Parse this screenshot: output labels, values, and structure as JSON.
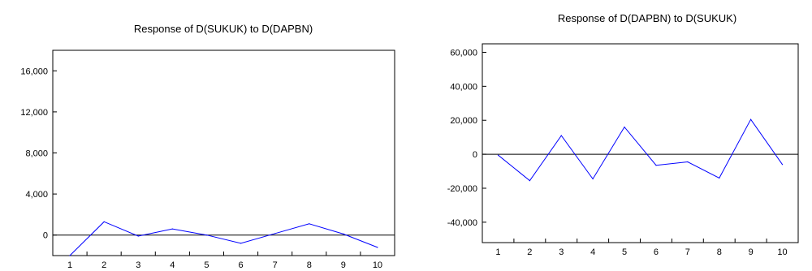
{
  "chart_data": [
    {
      "type": "line",
      "title": "Response of D(SUKUK) to D(DAPBN)",
      "categories": [
        "1",
        "2",
        "3",
        "4",
        "5",
        "6",
        "7",
        "8",
        "9",
        "10"
      ],
      "y_ticks": [
        0,
        4000,
        8000,
        12000,
        16000
      ],
      "y_tick_labels": [
        "0",
        "4,000",
        "8,000",
        "12,000",
        "16,000"
      ],
      "ylim": [
        -2000,
        18000
      ],
      "series": [
        {
          "color": "#0000ff",
          "values": [
            -2000,
            1300,
            -100,
            600,
            0,
            -800,
            150,
            1100,
            100,
            -1200
          ]
        }
      ],
      "zero_line": true
    },
    {
      "type": "line",
      "title": "Response of D(DAPBN) to D(SUKUK)",
      "categories": [
        "1",
        "2",
        "3",
        "4",
        "5",
        "6",
        "7",
        "8",
        "9",
        "10"
      ],
      "y_ticks": [
        -40000,
        -20000,
        0,
        20000,
        40000,
        60000
      ],
      "y_tick_labels": [
        "-40,000",
        "-20,000",
        "0",
        "20,000",
        "40,000",
        "60,000"
      ],
      "ylim": [
        -52000,
        65000
      ],
      "series": [
        {
          "color": "#0000ff",
          "values": [
            -500,
            -15500,
            11000,
            -14500,
            16000,
            -6500,
            -4500,
            -14000,
            20500,
            -6000
          ]
        }
      ],
      "zero_line": true
    }
  ]
}
